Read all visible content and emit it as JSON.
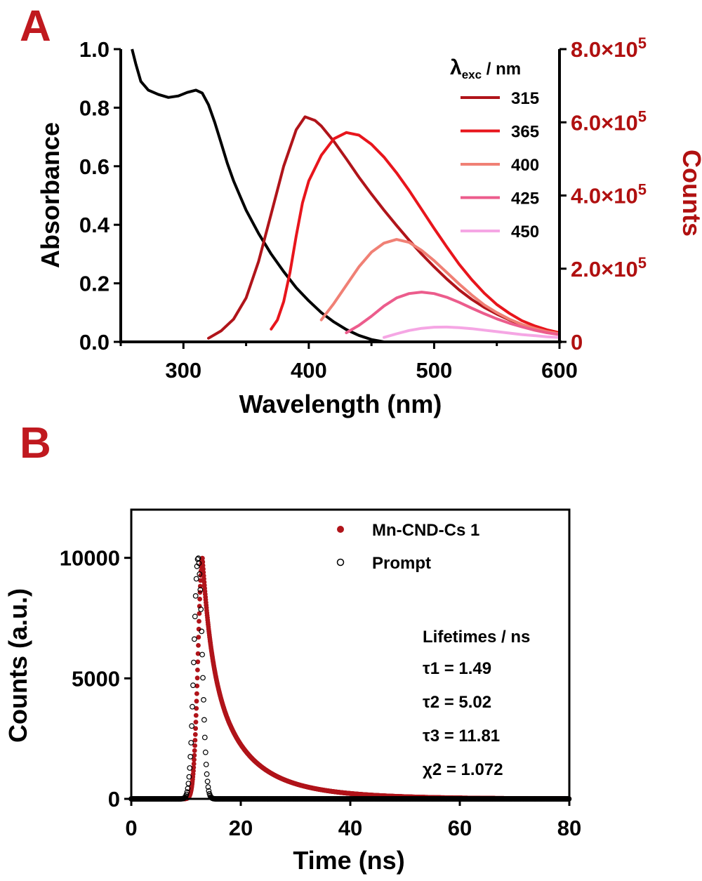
{
  "colors": {
    "panel_letter": "#c0191f",
    "axis": "#000000",
    "right_axis": "#b01010",
    "absorbance": "#000000",
    "mn_cnd": "#b0141a",
    "prompt": "#000000"
  },
  "chart_data": [
    {
      "panel_label": "A",
      "type": "line",
      "xlabel": "Wavelength (nm)",
      "ylabel": "Absorbance",
      "y2label": "Counts",
      "xlim": [
        250,
        600
      ],
      "ylim": [
        0,
        1.0
      ],
      "y2lim": [
        0,
        800000
      ],
      "xticks": [
        "300",
        "400",
        "500",
        "600"
      ],
      "yticks": [
        "0.0",
        "0.2",
        "0.4",
        "0.6",
        "0.8",
        "1.0"
      ],
      "y2ticks": [
        {
          "mantissa": "0",
          "exp": ""
        },
        {
          "mantissa": "2.0×10",
          "exp": "5"
        },
        {
          "mantissa": "4.0×10",
          "exp": "5"
        },
        {
          "mantissa": "6.0×10",
          "exp": "5"
        },
        {
          "mantissa": "8.0×10",
          "exp": "5"
        }
      ],
      "legend": {
        "title_main": "λ",
        "title_sub": "exc",
        "title_rest": " / nm",
        "placement": "top-right"
      },
      "absorbance": {
        "color": "#000000",
        "x": [
          259,
          262,
          266,
          272,
          280,
          288,
          296,
          303,
          310,
          315,
          320,
          325,
          330,
          335,
          340,
          345,
          350,
          360,
          370,
          380,
          390,
          400,
          410,
          420,
          430,
          440,
          450,
          460
        ],
        "y": [
          1.0,
          0.95,
          0.89,
          0.86,
          0.845,
          0.835,
          0.84,
          0.852,
          0.86,
          0.85,
          0.81,
          0.75,
          0.68,
          0.61,
          0.55,
          0.5,
          0.45,
          0.37,
          0.3,
          0.24,
          0.185,
          0.14,
          0.1,
          0.068,
          0.042,
          0.022,
          0.008,
          0.0
        ]
      },
      "series": [
        {
          "name": "315",
          "color": "#b0141a",
          "x": [
            320,
            330,
            340,
            350,
            360,
            370,
            380,
            390,
            397,
            405,
            410,
            420,
            430,
            440,
            450,
            460,
            470,
            480,
            490,
            500,
            510,
            520,
            530,
            540,
            550,
            560,
            570,
            580,
            590,
            600
          ],
          "y": [
            10000,
            30000,
            62000,
            120000,
            220000,
            350000,
            480000,
            580000,
            615000,
            605000,
            590000,
            548000,
            500000,
            450000,
            404000,
            360000,
            318000,
            278000,
            240000,
            205000,
            172000,
            142000,
            116000,
            94000,
            76000,
            60000,
            47000,
            37000,
            29000,
            22000
          ]
        },
        {
          "name": "365",
          "color": "#e8151c",
          "x": [
            370,
            375,
            380,
            385,
            390,
            395,
            400,
            410,
            420,
            430,
            440,
            450,
            460,
            470,
            480,
            490,
            500,
            510,
            520,
            530,
            540,
            550,
            560,
            570,
            580,
            590,
            600
          ],
          "y": [
            35000,
            60000,
            110000,
            190000,
            290000,
            380000,
            440000,
            510000,
            555000,
            572000,
            565000,
            540000,
            505000,
            462000,
            414000,
            362000,
            310000,
            260000,
            212000,
            170000,
            133000,
            102000,
            78000,
            58000,
            44000,
            33000,
            25000
          ]
        },
        {
          "name": "400",
          "color": "#f08075",
          "x": [
            410,
            420,
            430,
            440,
            450,
            460,
            470,
            480,
            490,
            500,
            510,
            520,
            530,
            540,
            550,
            560,
            570,
            580,
            590,
            600
          ],
          "y": [
            60000,
            105000,
            155000,
            205000,
            245000,
            270000,
            280000,
            272000,
            250000,
            222000,
            190000,
            158000,
            128000,
            101000,
            80000,
            62000,
            48000,
            37000,
            28000,
            22000
          ]
        },
        {
          "name": "425",
          "color": "#ec5c8c",
          "x": [
            430,
            440,
            450,
            460,
            470,
            480,
            490,
            500,
            510,
            520,
            530,
            540,
            550,
            560,
            570,
            580,
            590,
            600
          ],
          "y": [
            25000,
            45000,
            70000,
            98000,
            120000,
            132000,
            136000,
            132000,
            122000,
            108000,
            92000,
            77000,
            63000,
            51000,
            41000,
            32000,
            25000,
            20000
          ]
        },
        {
          "name": "450",
          "color": "#f5a6e4",
          "x": [
            460,
            470,
            480,
            490,
            500,
            510,
            520,
            530,
            540,
            550,
            560,
            570,
            580,
            590,
            600
          ],
          "y": [
            12000,
            22000,
            31000,
            37000,
            40000,
            40500,
            39000,
            36000,
            32000,
            28000,
            24000,
            20000,
            17000,
            14000,
            12000
          ]
        }
      ]
    },
    {
      "panel_label": "B",
      "type": "scatter",
      "xlabel": "Time (ns)",
      "ylabel": "Counts (a.u.)",
      "xlim": [
        0,
        80
      ],
      "ylim": [
        0,
        12000
      ],
      "xticks": [
        "0",
        "20",
        "40",
        "60",
        "80"
      ],
      "yticks": [
        "0",
        "5000",
        "10000"
      ],
      "legend_placement": "top-right",
      "series": [
        {
          "name": "Mn-CND-Cs 1",
          "marker": "filled-circle",
          "color": "#b0141a",
          "peak_time": 13.0,
          "peak_counts": 10000
        },
        {
          "name": "Prompt",
          "marker": "open-circle",
          "color": "#000000",
          "peak_time": 12.2,
          "peak_counts": 10000
        }
      ],
      "annotation": {
        "title": "Lifetimes / ns",
        "lines": [
          "τ1 = 1.49",
          "τ2 = 5.02",
          "τ3 = 11.81",
          "χ2 = 1.072"
        ]
      },
      "lifetimes_ns": [
        1.49,
        5.02,
        11.81
      ],
      "chi_squared": 1.072
    }
  ]
}
